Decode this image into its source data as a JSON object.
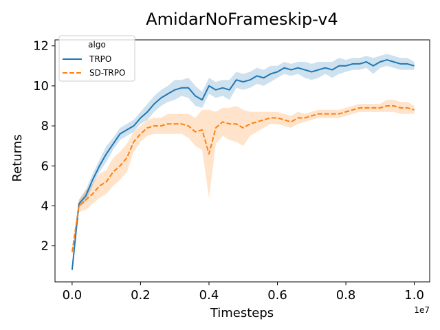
{
  "chart_data": {
    "type": "line",
    "title": "AmidarNoFrameskip-v4",
    "xlabel": "Timesteps",
    "ylabel": "Returns",
    "x_offset_label": "1e7",
    "xlim": [
      -0.05,
      1.045
    ],
    "ylim": [
      0.2,
      12.3
    ],
    "x_ticks": [
      0.0,
      0.2,
      0.4,
      0.6,
      0.8,
      1.0
    ],
    "x_tick_labels": [
      "0.0",
      "0.2",
      "0.4",
      "0.6",
      "0.8",
      "1.0"
    ],
    "y_ticks": [
      2,
      4,
      6,
      8,
      10,
      12
    ],
    "y_tick_labels": [
      "2",
      "4",
      "6",
      "8",
      "10",
      "12"
    ],
    "grid": false,
    "legend": {
      "title": "algo",
      "placement": "top-left"
    },
    "x": [
      0.0,
      0.02,
      0.04,
      0.06,
      0.08,
      0.1,
      0.12,
      0.14,
      0.16,
      0.18,
      0.2,
      0.22,
      0.24,
      0.26,
      0.28,
      0.3,
      0.32,
      0.34,
      0.36,
      0.38,
      0.4,
      0.42,
      0.44,
      0.46,
      0.48,
      0.5,
      0.52,
      0.54,
      0.56,
      0.58,
      0.6,
      0.62,
      0.64,
      0.66,
      0.68,
      0.7,
      0.72,
      0.74,
      0.76,
      0.78,
      0.8,
      0.82,
      0.84,
      0.86,
      0.88,
      0.9,
      0.92,
      0.94,
      0.96,
      0.98,
      1.0
    ],
    "series": [
      {
        "name": "TRPO",
        "color": "#1f77b4",
        "style": "solid",
        "values": [
          0.8,
          4.1,
          4.5,
          5.3,
          6.0,
          6.6,
          7.1,
          7.6,
          7.8,
          8.0,
          8.4,
          8.7,
          9.1,
          9.4,
          9.6,
          9.8,
          9.9,
          9.9,
          9.5,
          9.3,
          10.0,
          9.8,
          9.9,
          9.8,
          10.3,
          10.2,
          10.3,
          10.5,
          10.4,
          10.6,
          10.7,
          10.9,
          10.8,
          10.9,
          10.8,
          10.7,
          10.8,
          10.9,
          10.8,
          11.0,
          11.0,
          11.1,
          11.1,
          11.2,
          11.0,
          11.2,
          11.3,
          11.2,
          11.1,
          11.1,
          11.0
        ],
        "lower": [
          0.7,
          3.9,
          4.2,
          5.0,
          5.7,
          6.2,
          6.8,
          7.3,
          7.5,
          7.7,
          8.1,
          8.3,
          8.7,
          9.0,
          9.2,
          9.3,
          9.5,
          9.4,
          9.0,
          8.9,
          9.6,
          9.4,
          9.5,
          9.3,
          9.9,
          9.8,
          9.9,
          10.1,
          10.0,
          10.2,
          10.4,
          10.6,
          10.5,
          10.6,
          10.4,
          10.3,
          10.4,
          10.6,
          10.4,
          10.6,
          10.7,
          10.8,
          10.8,
          10.9,
          10.6,
          10.9,
          11.0,
          10.9,
          10.8,
          10.8,
          10.8
        ],
        "upper": [
          0.9,
          4.3,
          4.8,
          5.6,
          6.3,
          7.0,
          7.4,
          7.9,
          8.1,
          8.3,
          8.7,
          9.1,
          9.5,
          9.8,
          10.0,
          10.3,
          10.3,
          10.4,
          10.0,
          9.7,
          10.4,
          10.2,
          10.3,
          10.3,
          10.7,
          10.6,
          10.7,
          10.9,
          10.8,
          11.0,
          11.0,
          11.2,
          11.1,
          11.2,
          11.2,
          11.1,
          11.2,
          11.2,
          11.2,
          11.4,
          11.3,
          11.4,
          11.4,
          11.5,
          11.4,
          11.5,
          11.6,
          11.5,
          11.4,
          11.4,
          11.2
        ]
      },
      {
        "name": "SD-TRPO",
        "color": "#ff7f0e",
        "style": "dashed",
        "values": [
          1.7,
          4.0,
          4.3,
          4.6,
          5.0,
          5.2,
          5.7,
          6.0,
          6.4,
          7.2,
          7.6,
          7.9,
          8.0,
          8.0,
          8.1,
          8.1,
          8.1,
          8.0,
          7.7,
          7.8,
          6.6,
          7.9,
          8.2,
          8.1,
          8.1,
          7.9,
          8.1,
          8.2,
          8.3,
          8.4,
          8.4,
          8.3,
          8.2,
          8.4,
          8.4,
          8.5,
          8.6,
          8.6,
          8.6,
          8.6,
          8.7,
          8.8,
          8.9,
          8.9,
          8.9,
          8.9,
          9.0,
          9.0,
          8.9,
          8.9,
          8.8
        ],
        "lower": [
          1.5,
          3.7,
          3.8,
          4.1,
          4.4,
          4.6,
          5.0,
          5.3,
          5.7,
          6.7,
          7.2,
          7.5,
          7.6,
          7.6,
          7.6,
          7.6,
          7.6,
          7.4,
          7.0,
          6.8,
          4.4,
          7.1,
          7.5,
          7.3,
          7.2,
          7.0,
          7.5,
          7.7,
          7.9,
          8.1,
          8.1,
          8.0,
          7.9,
          8.1,
          8.2,
          8.3,
          8.4,
          8.4,
          8.4,
          8.4,
          8.5,
          8.6,
          8.7,
          8.7,
          8.7,
          8.7,
          8.7,
          8.7,
          8.6,
          8.6,
          8.6
        ],
        "upper": [
          1.9,
          4.3,
          4.8,
          5.1,
          5.6,
          5.8,
          6.4,
          6.7,
          7.1,
          7.7,
          8.0,
          8.3,
          8.4,
          8.4,
          8.6,
          8.6,
          8.6,
          8.6,
          8.4,
          8.8,
          8.8,
          8.7,
          8.9,
          8.9,
          9.0,
          8.8,
          8.7,
          8.7,
          8.7,
          8.7,
          8.7,
          8.6,
          8.5,
          8.7,
          8.6,
          8.7,
          8.8,
          8.8,
          8.8,
          8.8,
          8.9,
          9.0,
          9.1,
          9.1,
          9.1,
          9.1,
          9.3,
          9.3,
          9.2,
          9.2,
          9.0
        ]
      }
    ]
  }
}
